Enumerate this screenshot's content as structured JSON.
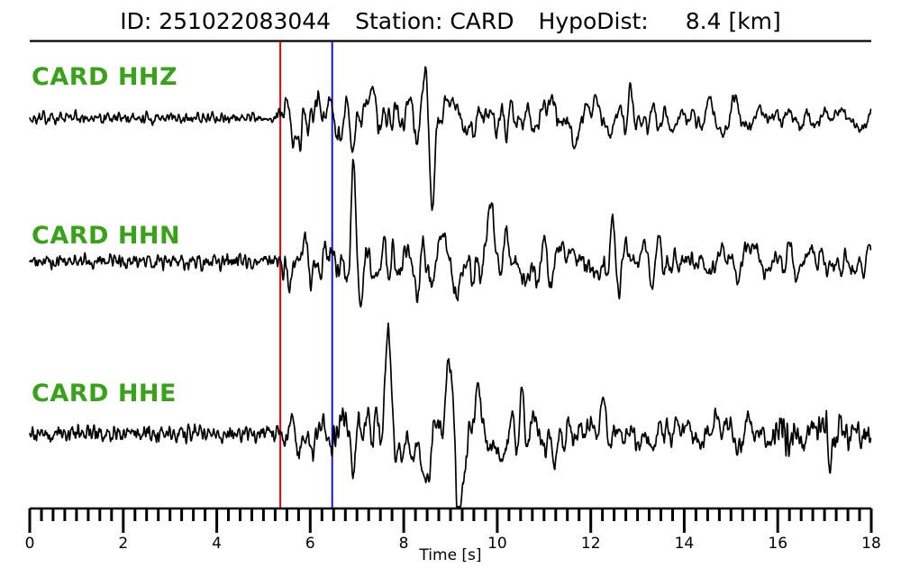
{
  "header": {
    "id": "ID: 251022083044",
    "station": "Station: CARD",
    "hypodist_label": "HypoDist:",
    "hypodist_value": "8.4 [km]"
  },
  "colors": {
    "label_green": "#3aa21a",
    "trace": "#000000",
    "axis": "#000000",
    "p_pick": "#e60000",
    "s_pick": "#1414dd"
  },
  "chart_data": {
    "type": "line",
    "kind": "seismogram",
    "xlabel": "Time [s]",
    "xlim": [
      0,
      18
    ],
    "x_ticks": [
      0,
      2,
      4,
      6,
      8,
      10,
      12,
      14,
      16,
      18
    ],
    "x_minor_step": 0.25,
    "grid": false,
    "picks": [
      {
        "name": "P",
        "time_s": 5.36
      },
      {
        "name": "S",
        "time_s": 6.47
      }
    ],
    "series": [
      {
        "channel": "HHZ",
        "label": "CARD HHZ",
        "seed": 13,
        "lf_envelope": [
          [
            0,
            2
          ],
          [
            5.3,
            2
          ],
          [
            5.45,
            38
          ],
          [
            5.9,
            42
          ],
          [
            6.3,
            32
          ],
          [
            6.7,
            42
          ],
          [
            7.1,
            46
          ],
          [
            7.5,
            36
          ],
          [
            7.9,
            30
          ],
          [
            8.3,
            38
          ],
          [
            8.6,
            40
          ],
          [
            9.0,
            34
          ],
          [
            9.5,
            30
          ],
          [
            10,
            32
          ],
          [
            10.5,
            26
          ],
          [
            11,
            30
          ],
          [
            11.5,
            24
          ],
          [
            12,
            28
          ],
          [
            12.5,
            22
          ],
          [
            13,
            26
          ],
          [
            13.5,
            20
          ],
          [
            14,
            24
          ],
          [
            14.5,
            19
          ],
          [
            15,
            22
          ],
          [
            15.5,
            17
          ],
          [
            16,
            20
          ],
          [
            16.5,
            15
          ],
          [
            17,
            18
          ],
          [
            17.5,
            13
          ],
          [
            18,
            15
          ]
        ],
        "hf_envelope": [
          [
            0,
            6
          ],
          [
            5.3,
            6
          ],
          [
            5.5,
            10
          ],
          [
            9,
            8
          ],
          [
            18,
            5
          ]
        ],
        "bumps": [
          {
            "t": 8.47,
            "amp": 85,
            "sigma": 0.06
          },
          {
            "t": 8.62,
            "amp": -75,
            "sigma": 0.07
          }
        ]
      },
      {
        "channel": "HHN",
        "label": "CARD HHN",
        "seed": 47,
        "lf_envelope": [
          [
            0,
            3
          ],
          [
            5.3,
            4
          ],
          [
            5.5,
            26
          ],
          [
            6,
            24
          ],
          [
            6.5,
            30
          ],
          [
            7,
            34
          ],
          [
            7.5,
            28
          ],
          [
            8,
            34
          ],
          [
            8.5,
            40
          ],
          [
            9,
            34
          ],
          [
            9.5,
            42
          ],
          [
            10,
            34
          ],
          [
            10.5,
            30
          ],
          [
            11,
            34
          ],
          [
            11.5,
            26
          ],
          [
            12,
            36
          ],
          [
            12.5,
            40
          ],
          [
            13,
            28
          ],
          [
            13.5,
            32
          ],
          [
            14,
            24
          ],
          [
            14.5,
            28
          ],
          [
            15,
            22
          ],
          [
            15.5,
            26
          ],
          [
            16,
            20
          ],
          [
            16.5,
            24
          ],
          [
            17,
            20
          ],
          [
            17.5,
            24
          ],
          [
            18,
            20
          ]
        ],
        "hf_envelope": [
          [
            0,
            8
          ],
          [
            5.3,
            8
          ],
          [
            5.5,
            11
          ],
          [
            18,
            6
          ]
        ],
        "bumps": [
          {
            "t": 6.92,
            "amp": 70,
            "sigma": 0.07
          },
          {
            "t": 7.06,
            "amp": -52,
            "sigma": 0.08
          },
          {
            "t": 9.1,
            "amp": -45,
            "sigma": 0.1
          },
          {
            "t": 9.85,
            "amp": 55,
            "sigma": 0.09
          }
        ]
      },
      {
        "channel": "HHE",
        "label": "CARD HHE",
        "seed": 71,
        "lf_envelope": [
          [
            0,
            3
          ],
          [
            5.35,
            4
          ],
          [
            5.55,
            30
          ],
          [
            6,
            26
          ],
          [
            6.5,
            34
          ],
          [
            7,
            40
          ],
          [
            7.5,
            46
          ],
          [
            8,
            42
          ],
          [
            8.5,
            40
          ],
          [
            9,
            44
          ],
          [
            9.5,
            40
          ],
          [
            10,
            42
          ],
          [
            10.5,
            36
          ],
          [
            11,
            40
          ],
          [
            11.5,
            34
          ],
          [
            12,
            38
          ],
          [
            12.5,
            30
          ],
          [
            13,
            28
          ],
          [
            13.5,
            26
          ],
          [
            14,
            30
          ],
          [
            14.5,
            24
          ],
          [
            15,
            26
          ],
          [
            15.5,
            22
          ],
          [
            16,
            20
          ],
          [
            16.4,
            26
          ],
          [
            16.8,
            20
          ],
          [
            17.1,
            26
          ],
          [
            17.5,
            20
          ],
          [
            18,
            18
          ]
        ],
        "hf_envelope": [
          [
            0,
            9
          ],
          [
            5.4,
            9
          ],
          [
            5.6,
            12
          ],
          [
            15.8,
            8
          ],
          [
            16.2,
            22
          ],
          [
            16.6,
            10
          ],
          [
            17.0,
            24
          ],
          [
            17.4,
            10
          ],
          [
            17.8,
            14
          ],
          [
            18,
            10
          ]
        ],
        "bumps": [
          {
            "t": 7.65,
            "amp": 58,
            "sigma": 0.09
          },
          {
            "t": 8.45,
            "amp": -62,
            "sigma": 0.1
          },
          {
            "t": 8.95,
            "amp": 60,
            "sigma": 0.09
          },
          {
            "t": 9.17,
            "amp": -80,
            "sigma": 0.08
          }
        ]
      }
    ]
  }
}
